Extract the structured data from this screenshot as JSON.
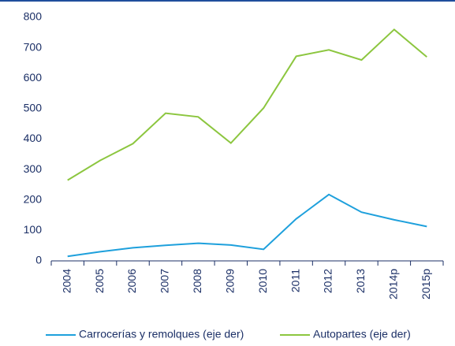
{
  "chart_data": {
    "type": "line",
    "categories": [
      "2004",
      "2005",
      "2006",
      "2007",
      "2008",
      "2009",
      "2010",
      "2011",
      "2012",
      "2013",
      "2014p",
      "2015p"
    ],
    "series": [
      {
        "name": "Carrocerías y remolques (eje der)",
        "color": "#1ea0dc",
        "values": [
          15,
          30,
          43,
          51,
          58,
          52,
          38,
          138,
          218,
          160,
          135,
          113
        ]
      },
      {
        "name": "Autopartes (eje der)",
        "color": "#8cc63f",
        "values": [
          265,
          330,
          385,
          485,
          473,
          387,
          502,
          672,
          693,
          660,
          760,
          670
        ]
      }
    ],
    "ylim": [
      0,
      800
    ],
    "yticks": [
      0,
      100,
      200,
      300,
      400,
      500,
      600,
      700,
      800
    ],
    "grid": false,
    "legend": "bottom"
  }
}
